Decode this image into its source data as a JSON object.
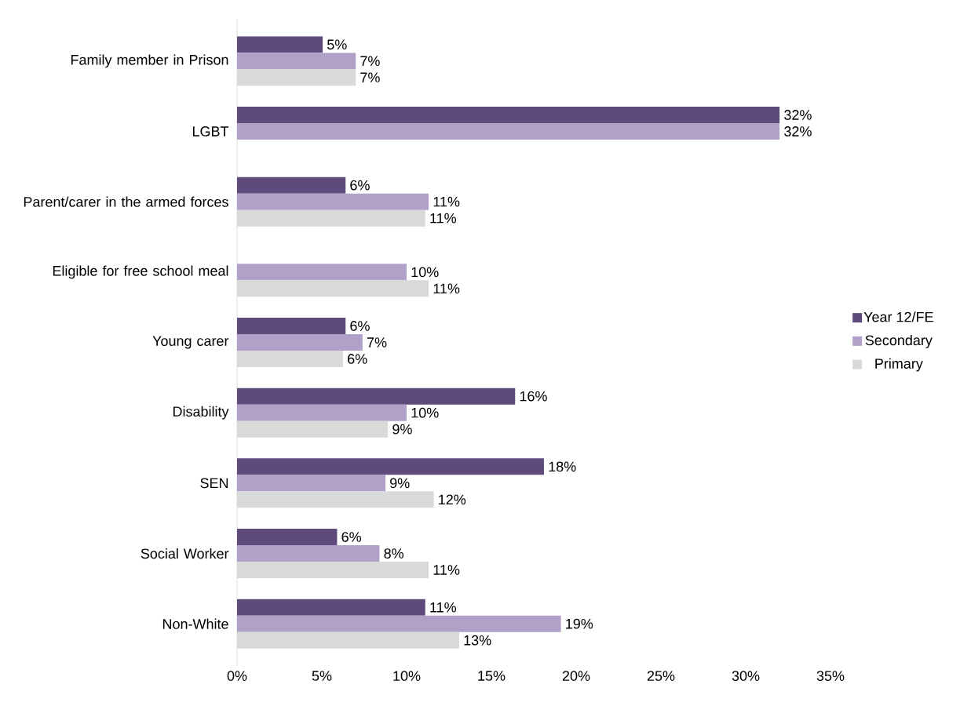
{
  "chart_data": {
    "type": "bar",
    "orientation": "horizontal",
    "categories": [
      "Family member in Prison",
      "LGBT",
      "Parent/carer in the armed forces",
      "Eligible for free school meal",
      "Young carer",
      "Disability",
      "SEN",
      "Social Worker",
      "Non-White"
    ],
    "series": [
      {
        "name": "Year 12/FE",
        "color": "#5f4b7b",
        "values": [
          5.05,
          32.0,
          6.4,
          null,
          6.4,
          16.4,
          18.1,
          5.9,
          11.1
        ],
        "value_labels": [
          "5%",
          "32%",
          "6%",
          null,
          "6%",
          "16%",
          "18%",
          "6%",
          "11%"
        ]
      },
      {
        "name": "Secondary",
        "color": "#b1a0c7",
        "values": [
          7.0,
          32.0,
          11.3,
          10.0,
          7.4,
          10.0,
          8.75,
          8.4,
          19.1
        ],
        "value_labels": [
          "7%",
          "32%",
          "11%",
          "10%",
          "7%",
          "10%",
          "9%",
          "8%",
          "19%"
        ]
      },
      {
        "name": "Primary",
        "color": "#d9d9d9",
        "values": [
          7.0,
          null,
          11.1,
          11.3,
          6.25,
          8.9,
          11.6,
          11.3,
          13.1
        ],
        "value_labels": [
          "7%",
          null,
          "11%",
          "11%",
          "6%",
          "9%",
          "12%",
          "11%",
          "13%"
        ]
      }
    ],
    "xlim": [
      0,
      35
    ],
    "xticks": [
      {
        "value": 0,
        "label": "0%"
      },
      {
        "value": 5,
        "label": "5%"
      },
      {
        "value": 10,
        "label": "10%"
      },
      {
        "value": 15,
        "label": "15%"
      },
      {
        "value": 20,
        "label": "20%"
      },
      {
        "value": 25,
        "label": "25%"
      },
      {
        "value": 30,
        "label": "30%"
      },
      {
        "value": 35,
        "label": "35%"
      }
    ],
    "legend": "right"
  }
}
